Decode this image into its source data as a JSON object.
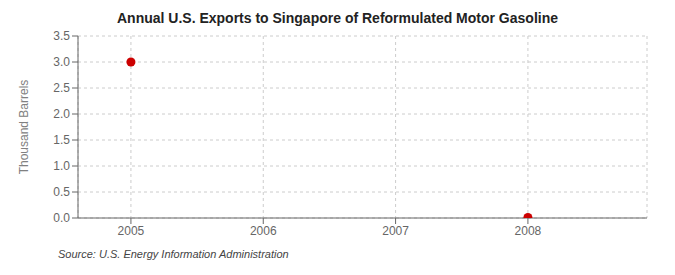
{
  "chart_data": {
    "type": "scatter",
    "title": "Annual U.S. Exports to Singapore of Reformulated Motor Gasoline",
    "ylabel": "Thousand Barrels",
    "annotations": [
      "Source: U.S. Energy Information Administration"
    ],
    "x": [
      2005,
      2008
    ],
    "values": [
      3.0,
      0.01
    ],
    "color": "#cc0000",
    "marker": "circle",
    "xlim": [
      2004.6,
      2008.9
    ],
    "ylim": [
      0.0,
      3.5
    ],
    "xticks": [
      2005,
      2006,
      2007,
      2008
    ],
    "yticks": [
      {
        "value": 0.0,
        "label": "0.0"
      },
      0.5,
      {
        "value": 1.0,
        "label": "1.0"
      },
      1.5,
      {
        "value": 2.0,
        "label": "2.0"
      },
      2.5,
      {
        "value": 3.0,
        "label": "3.0"
      },
      3.5
    ],
    "grid": true
  }
}
